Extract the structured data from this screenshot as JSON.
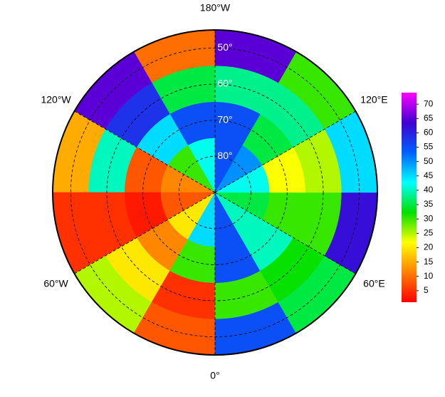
{
  "chart_data": {
    "type": "polar_grid",
    "lat_bins": [
      45,
      55,
      65,
      75,
      90
    ],
    "lon_bins": [
      -180,
      -150,
      -120,
      -90,
      -60,
      -30,
      0,
      30,
      60,
      90,
      120,
      150,
      180
    ],
    "values": [
      [
        10,
        65,
        15,
        5,
        25,
        8,
        55,
        35,
        62,
        45,
        30,
        65
      ],
      [
        35,
        58,
        40,
        5,
        20,
        5,
        30,
        32,
        30,
        25,
        38,
        38
      ],
      [
        55,
        45,
        8,
        3,
        12,
        30,
        55,
        40,
        30,
        22,
        35,
        55
      ],
      [
        42,
        30,
        12,
        8,
        20,
        45,
        55,
        40,
        35,
        42,
        50,
        55
      ]
    ],
    "lat_circles": [
      {
        "value": 50,
        "label": "50°"
      },
      {
        "value": 60,
        "label": "60°"
      },
      {
        "value": 70,
        "label": "70°"
      },
      {
        "value": 80,
        "label": "80°"
      }
    ],
    "lon_ticks": [
      {
        "value": -180,
        "label": "180°W"
      },
      {
        "value": -120,
        "label": "120°W"
      },
      {
        "value": -60,
        "label": "60°W"
      },
      {
        "value": 0,
        "label": "0°"
      },
      {
        "value": 60,
        "label": "60°E"
      },
      {
        "value": 120,
        "label": "120°E"
      }
    ],
    "colormap": [
      "#ff0000",
      "#ff8000",
      "#ffff00",
      "#00e000",
      "#00ffff",
      "#0060ff",
      "#4000d0",
      "#ff00ff"
    ],
    "clim": [
      1,
      74
    ],
    "colorbar_ticks": [
      5,
      10,
      15,
      20,
      25,
      30,
      35,
      40,
      45,
      50,
      55,
      60,
      65,
      70
    ]
  }
}
